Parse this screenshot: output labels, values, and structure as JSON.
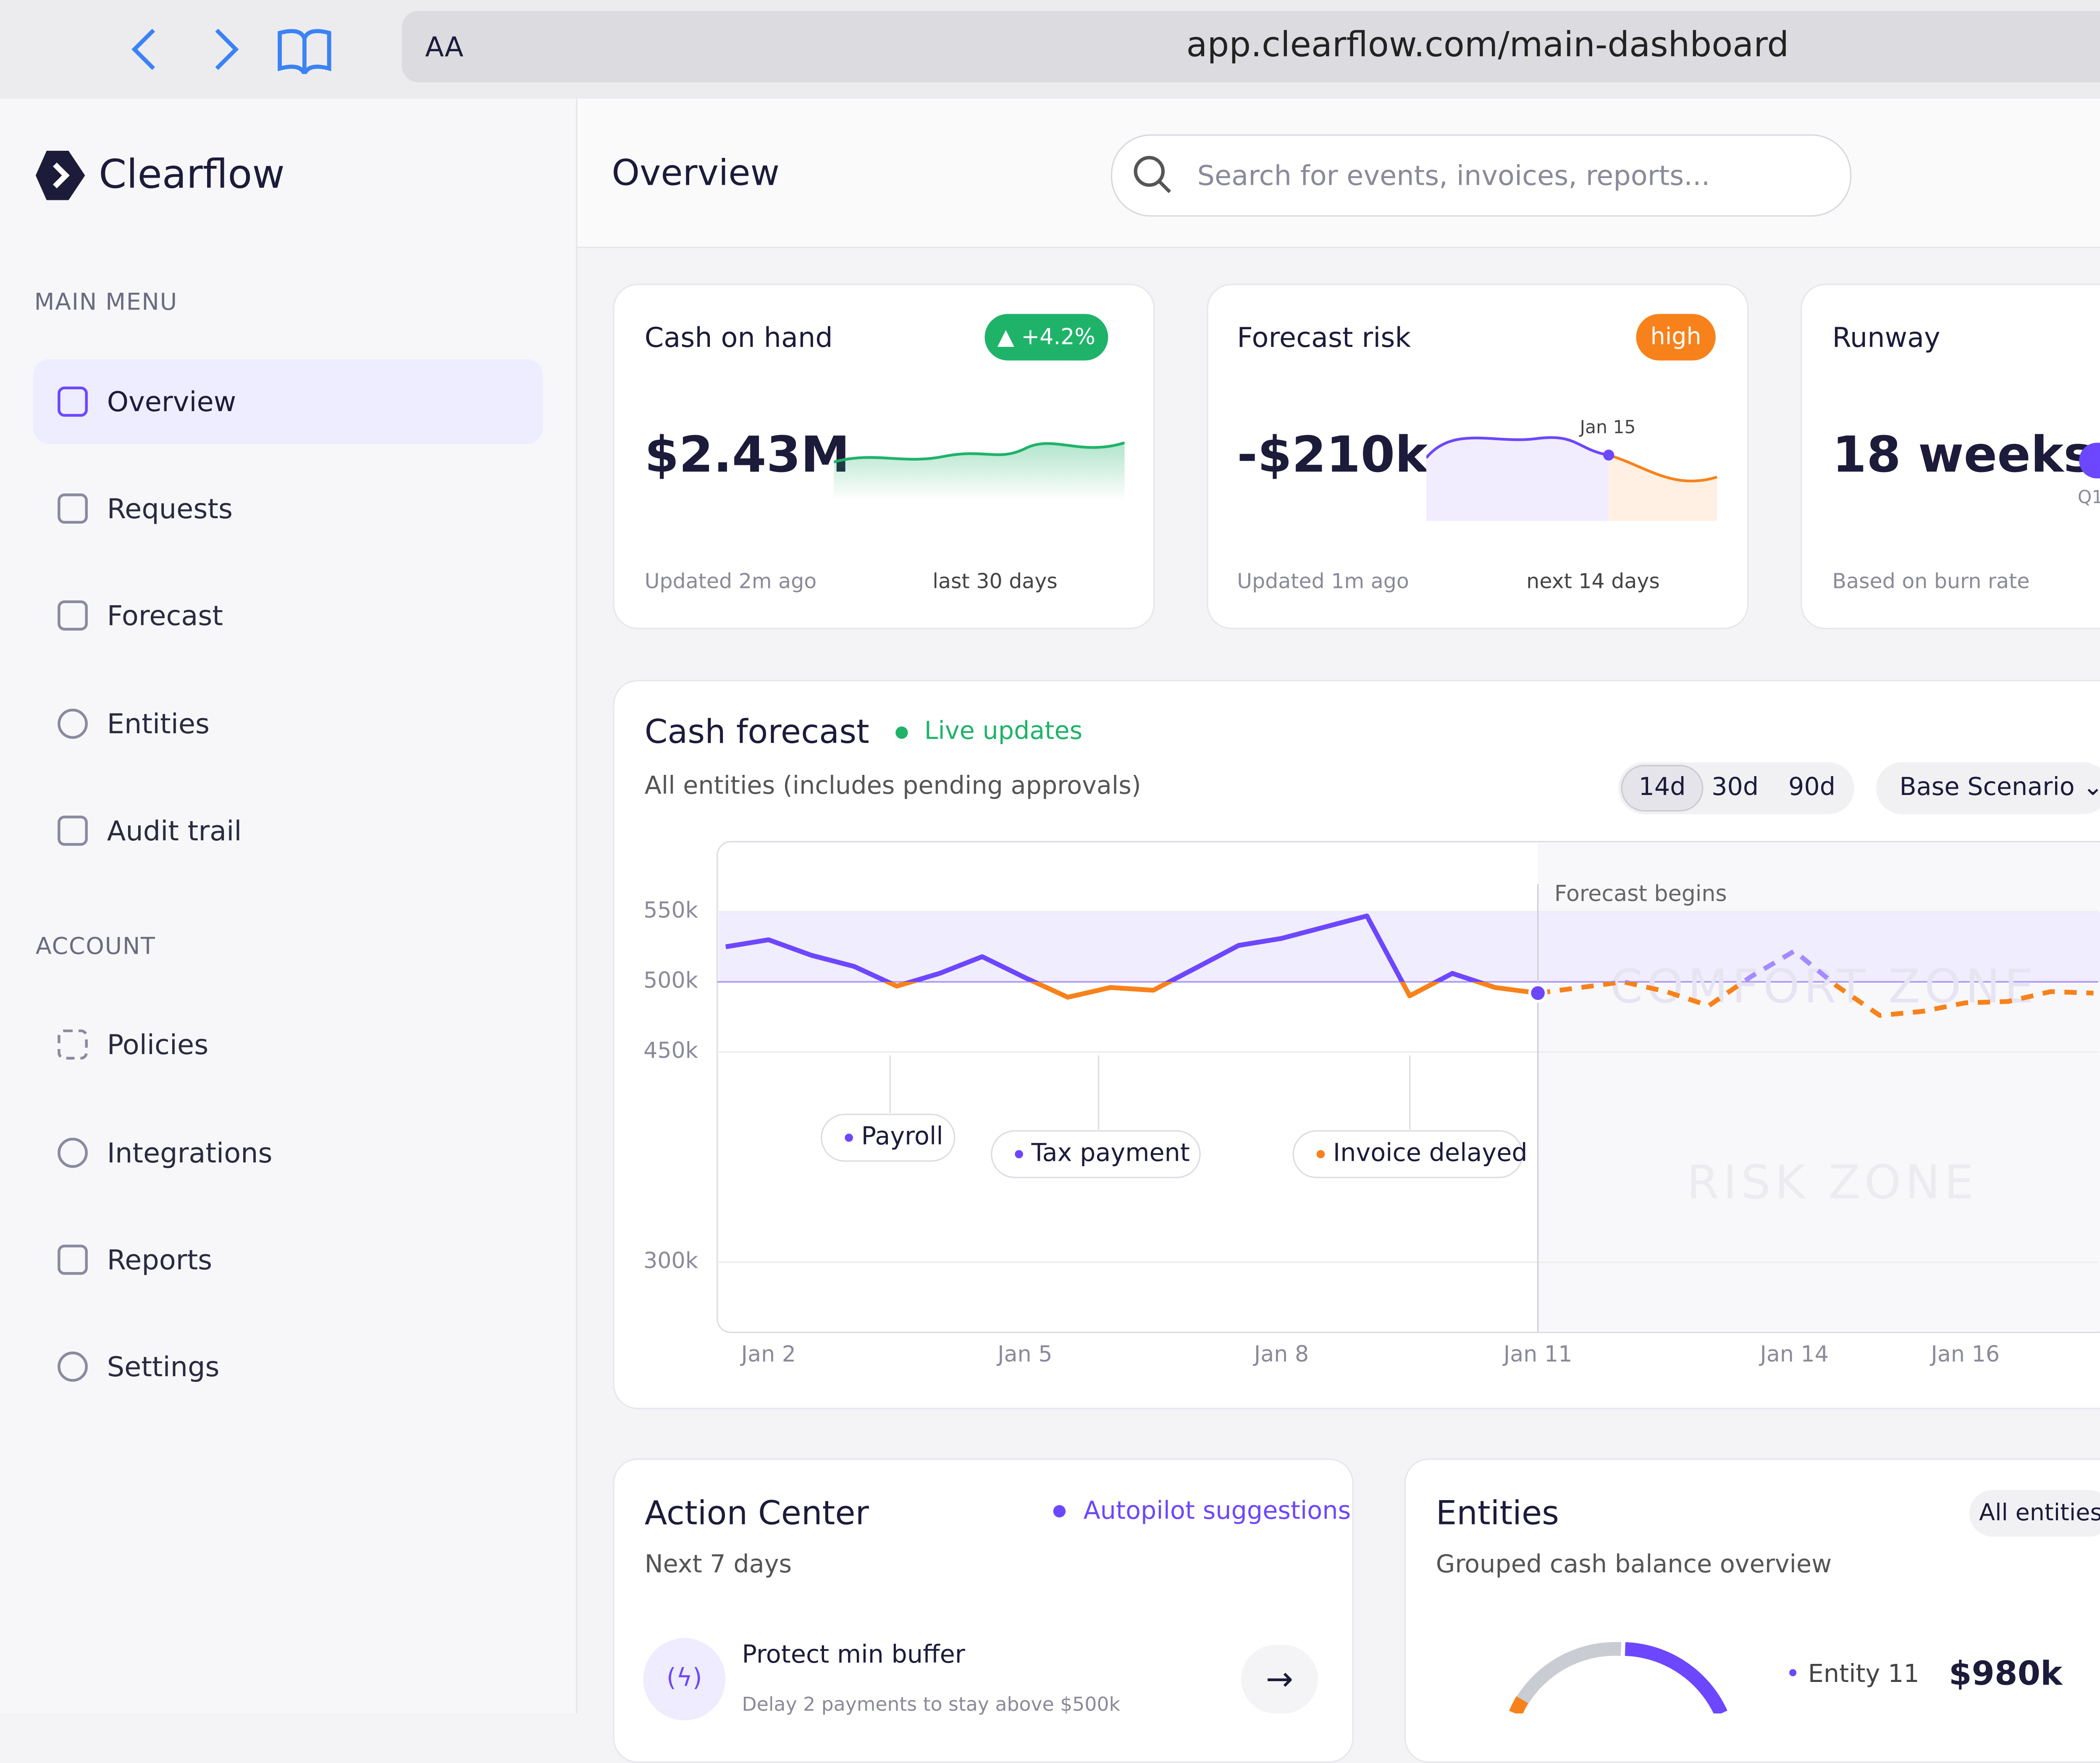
{
  "browser": {
    "text_size": "AA",
    "url": "app.clearflow.com/main-dashboard"
  },
  "sidebar": {
    "brand": "Clearflow",
    "sections": [
      {
        "title": "MAIN MENU",
        "items": [
          "Overview",
          "Requests",
          "Forecast",
          "Entities",
          "Audit trail"
        ]
      },
      {
        "title": "ACCOUNT",
        "items": [
          "Policies",
          "Integrations",
          "Reports",
          "Settings"
        ]
      }
    ]
  },
  "header": {
    "title": "Overview",
    "search_placeholder": "Search for events, invoices, reports..."
  },
  "cards": [
    {
      "title": "Cash on hand",
      "badge": "+4.2%",
      "value": "$2.43M",
      "updated": "Updated 2m ago",
      "period": "last 30 days"
    },
    {
      "title": "Forecast risk",
      "badge": "high",
      "value": "-$210k",
      "marker": "Jan 15",
      "updated": "Updated 1m ago",
      "period": "next 14 days"
    },
    {
      "title": "Runway",
      "value": "18 weeks",
      "marker": "Q1",
      "updated": "Based on burn rate"
    }
  ],
  "cash_forecast": {
    "title": "Cash forecast",
    "status": "Live updates",
    "subtitle": "All entities (includes pending approvals)",
    "ranges": [
      "14d",
      "30d",
      "90d"
    ],
    "scenario": "Base Scenario",
    "chart_data": {
      "type": "line",
      "annotation": "Forecast begins",
      "zones": [
        "COMFORT ZONE",
        "RISK ZONE"
      ],
      "events": [
        "Payroll",
        "Tax payment",
        "Invoice delayed"
      ],
      "xlim": [
        1.4,
        17.7
      ],
      "xticks": [
        {
          "value": 2,
          "label": "Jan 2"
        },
        {
          "value": 5,
          "label": "Jan 5"
        },
        {
          "value": 8,
          "label": "Jan 8"
        },
        {
          "value": 11,
          "label": "Jan 11"
        },
        {
          "value": 14,
          "label": "Jan 14"
        },
        {
          "value": 16,
          "label": "Jan 16"
        }
      ],
      "ylim": [
        250000,
        600000
      ],
      "yticks": [
        {
          "value": 550000,
          "label": "550k"
        },
        {
          "value": 500000,
          "label": "500k"
        },
        {
          "value": 450000,
          "label": "450k"
        },
        {
          "value": 300000,
          "label": "300k"
        }
      ],
      "grid": true,
      "series": [
        {
          "color": "#6c47ff",
          "below_color": "#f7821b",
          "dashed": false,
          "x": [
            1.5,
            2,
            2.5,
            3,
            3.5,
            4,
            4.5,
            5,
            5.5,
            6,
            6.5,
            7,
            7.5,
            8,
            8.5,
            9,
            9.5,
            10,
            10.5,
            11
          ],
          "values": [
            525000,
            530000,
            519000,
            511000,
            497000,
            506000,
            518000,
            503000,
            489000,
            496000,
            494000,
            510000,
            526000,
            531000,
            539000,
            547000,
            490000,
            506000,
            496000,
            492000
          ]
        },
        {
          "color": "#a48cff",
          "below_color": "#f7821b",
          "dashed": true,
          "x": [
            11,
            11.5,
            12,
            12.5,
            13,
            13.5,
            14,
            14.5,
            15,
            15.5,
            16,
            16.5,
            17,
            17.5
          ],
          "values": [
            492000,
            496000,
            500000,
            493000,
            483000,
            504000,
            522000,
            497000,
            476000,
            479000,
            485000,
            486000,
            493000,
            492000
          ]
        }
      ]
    }
  },
  "action_center": {
    "title": "Action Center",
    "tag": "Autopilot suggestions",
    "subtitle": "Next 7 days",
    "item_title": "Protect min buffer",
    "item_text": "Delay 2 payments to stay above $500k"
  },
  "entities": {
    "title": "Entities",
    "filter": "All entities",
    "subtitle": "Grouped cash balance overview",
    "legend_name": "Entity 11",
    "legend_value": "$980k"
  }
}
